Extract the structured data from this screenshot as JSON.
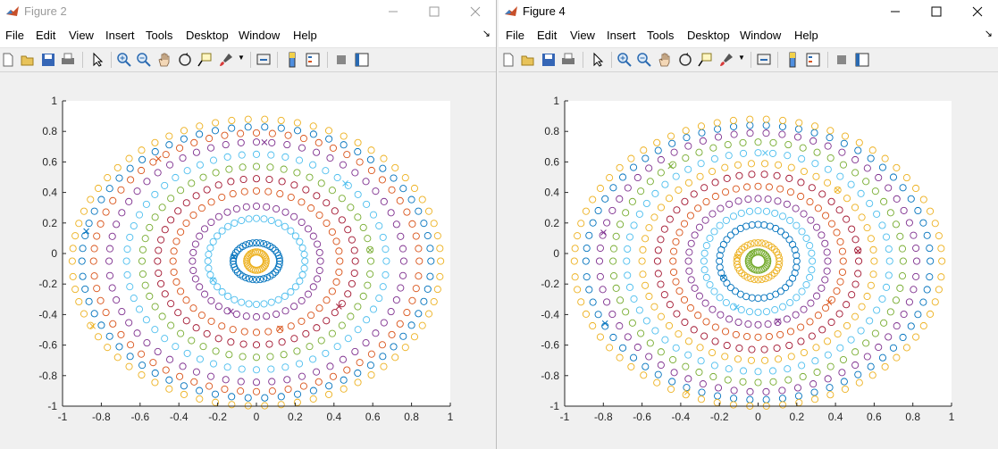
{
  "windows": [
    {
      "title": "Figure 2",
      "active": false,
      "menu": [
        "File",
        "Edit",
        "View",
        "Insert",
        "Tools",
        "Desktop",
        "Window",
        "Help"
      ],
      "chart_data": {
        "type": "scatter",
        "title": "",
        "xlabel": "",
        "ylabel": "",
        "xlim": [
          -1,
          1
        ],
        "ylim": [
          -1,
          1
        ],
        "xticks": [
          "-1",
          "-0.8",
          "-0.6",
          "-0.4",
          "-0.2",
          "0",
          "0.2",
          "0.4",
          "0.6",
          "0.8",
          "1"
        ],
        "yticks": [
          "1",
          "0.8",
          "0.6",
          "0.4",
          "0.2",
          "0",
          "-0.2",
          "-0.4",
          "-0.6",
          "-0.8",
          "-1"
        ],
        "grid": false,
        "markers": "open circles with x start markers",
        "series": [
          {
            "color": "#EDB120",
            "rx": 0.05,
            "ry": 0.06,
            "n": 30,
            "fill": true
          },
          {
            "color": "#0072BD",
            "rx": 0.12,
            "ry": 0.12,
            "n": 40,
            "fill": true
          },
          {
            "color": "#4DBEEE",
            "rx": 0.25,
            "ry": 0.28,
            "n": 40
          },
          {
            "color": "#7E2F8E",
            "rx": 0.33,
            "ry": 0.36,
            "n": 40
          },
          {
            "color": "#D95319",
            "rx": 0.43,
            "ry": 0.46,
            "n": 44
          },
          {
            "color": "#A2142F",
            "rx": 0.51,
            "ry": 0.54,
            "n": 48
          },
          {
            "color": "#77AC30",
            "rx": 0.59,
            "ry": 0.62,
            "n": 52
          },
          {
            "color": "#4DBEEE",
            "rx": 0.67,
            "ry": 0.7,
            "n": 56
          },
          {
            "color": "#7E2F8E",
            "rx": 0.76,
            "ry": 0.78,
            "n": 60
          },
          {
            "color": "#D95319",
            "rx": 0.84,
            "ry": 0.84,
            "n": 64
          },
          {
            "color": "#0072BD",
            "rx": 0.9,
            "ry": 0.88,
            "n": 66
          },
          {
            "color": "#EDB120",
            "rx": 0.95,
            "ry": 0.93,
            "n": 70
          }
        ]
      }
    },
    {
      "title": "Figure 4",
      "active": true,
      "menu": [
        "File",
        "Edit",
        "View",
        "Insert",
        "Tools",
        "Desktop",
        "Window",
        "Help"
      ],
      "chart_data": {
        "type": "scatter",
        "title": "",
        "xlabel": "",
        "ylabel": "",
        "xlim": [
          -1,
          1
        ],
        "ylim": [
          -1,
          1
        ],
        "xticks": [
          "-1",
          "-0.8",
          "-0.6",
          "-0.4",
          "-0.2",
          "0",
          "0.2",
          "0.4",
          "0.6",
          "0.8",
          "1"
        ],
        "yticks": [
          "1",
          "0.8",
          "0.6",
          "0.4",
          "0.2",
          "0",
          "-0.2",
          "-0.4",
          "-0.6",
          "-0.8",
          "-1"
        ],
        "grid": false,
        "markers": "open circles with x start markers",
        "series": [
          {
            "color": "#77AC30",
            "rx": 0.05,
            "ry": 0.06,
            "n": 30,
            "fill": true
          },
          {
            "color": "#EDB120",
            "rx": 0.11,
            "ry": 0.12,
            "n": 36,
            "fill": true
          },
          {
            "color": "#0072BD",
            "rx": 0.2,
            "ry": 0.24,
            "n": 40
          },
          {
            "color": "#4DBEEE",
            "rx": 0.28,
            "ry": 0.33,
            "n": 40
          },
          {
            "color": "#7E2F8E",
            "rx": 0.36,
            "ry": 0.41,
            "n": 44
          },
          {
            "color": "#D95319",
            "rx": 0.44,
            "ry": 0.49,
            "n": 48
          },
          {
            "color": "#A2142F",
            "rx": 0.52,
            "ry": 0.57,
            "n": 50
          },
          {
            "color": "#EDB120",
            "rx": 0.6,
            "ry": 0.64,
            "n": 54
          },
          {
            "color": "#4DBEEE",
            "rx": 0.68,
            "ry": 0.71,
            "n": 56
          },
          {
            "color": "#77AC30",
            "rx": 0.75,
            "ry": 0.78,
            "n": 60
          },
          {
            "color": "#7E2F8E",
            "rx": 0.82,
            "ry": 0.84,
            "n": 62
          },
          {
            "color": "#0072BD",
            "rx": 0.89,
            "ry": 0.89,
            "n": 66
          },
          {
            "color": "#EDB120",
            "rx": 0.95,
            "ry": 0.93,
            "n": 70
          }
        ]
      }
    }
  ]
}
